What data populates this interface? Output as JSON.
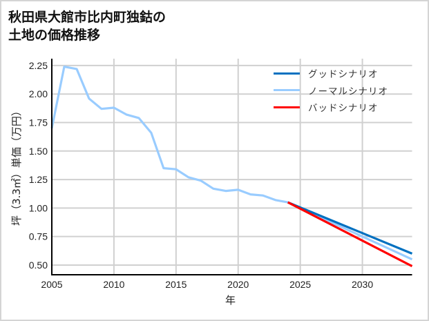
{
  "chart_data": {
    "type": "line",
    "title": "秋田県大館市比内町独鈷の\n土地の価格推移",
    "xlabel": "年",
    "ylabel": "坪（3.3㎡）単価（万円）",
    "xlim": [
      2005,
      2034
    ],
    "ylim": [
      0.415,
      2.31
    ],
    "x_ticks": [
      2005,
      2010,
      2015,
      2020,
      2025,
      2030
    ],
    "y_ticks": [
      0.5,
      0.75,
      1.0,
      1.25,
      1.5,
      1.75,
      2.0,
      2.25
    ],
    "y_tick_labels": [
      "0.50",
      "0.75",
      "1.00",
      "1.25",
      "1.50",
      "1.75",
      "2.00",
      "2.25"
    ],
    "grid": true,
    "legend_position": "upper right",
    "series": [
      {
        "name": "グッドシナリオ",
        "color": "#0070c0",
        "x": [
          2024,
          2034
        ],
        "values": [
          1.05,
          0.6
        ]
      },
      {
        "name": "ノーマルシナリオ",
        "color": "#99ccff",
        "x": [
          2005,
          2006,
          2007,
          2008,
          2009,
          2010,
          2011,
          2012,
          2013,
          2014,
          2015,
          2016,
          2017,
          2018,
          2019,
          2020,
          2021,
          2022,
          2023,
          2024,
          2034
        ],
        "values": [
          1.7,
          2.24,
          2.22,
          1.96,
          1.87,
          1.88,
          1.82,
          1.79,
          1.66,
          1.35,
          1.34,
          1.27,
          1.24,
          1.17,
          1.15,
          1.16,
          1.12,
          1.11,
          1.07,
          1.05,
          0.55
        ]
      },
      {
        "name": "バッドシナリオ",
        "color": "#ff0000",
        "x": [
          2024,
          2034
        ],
        "values": [
          1.05,
          0.49
        ]
      }
    ]
  },
  "legend": [
    {
      "label": "グッドシナリオ",
      "color": "#0070c0"
    },
    {
      "label": "ノーマルシナリオ",
      "color": "#99ccff"
    },
    {
      "label": "バッドシナリオ",
      "color": "#ff0000"
    }
  ]
}
